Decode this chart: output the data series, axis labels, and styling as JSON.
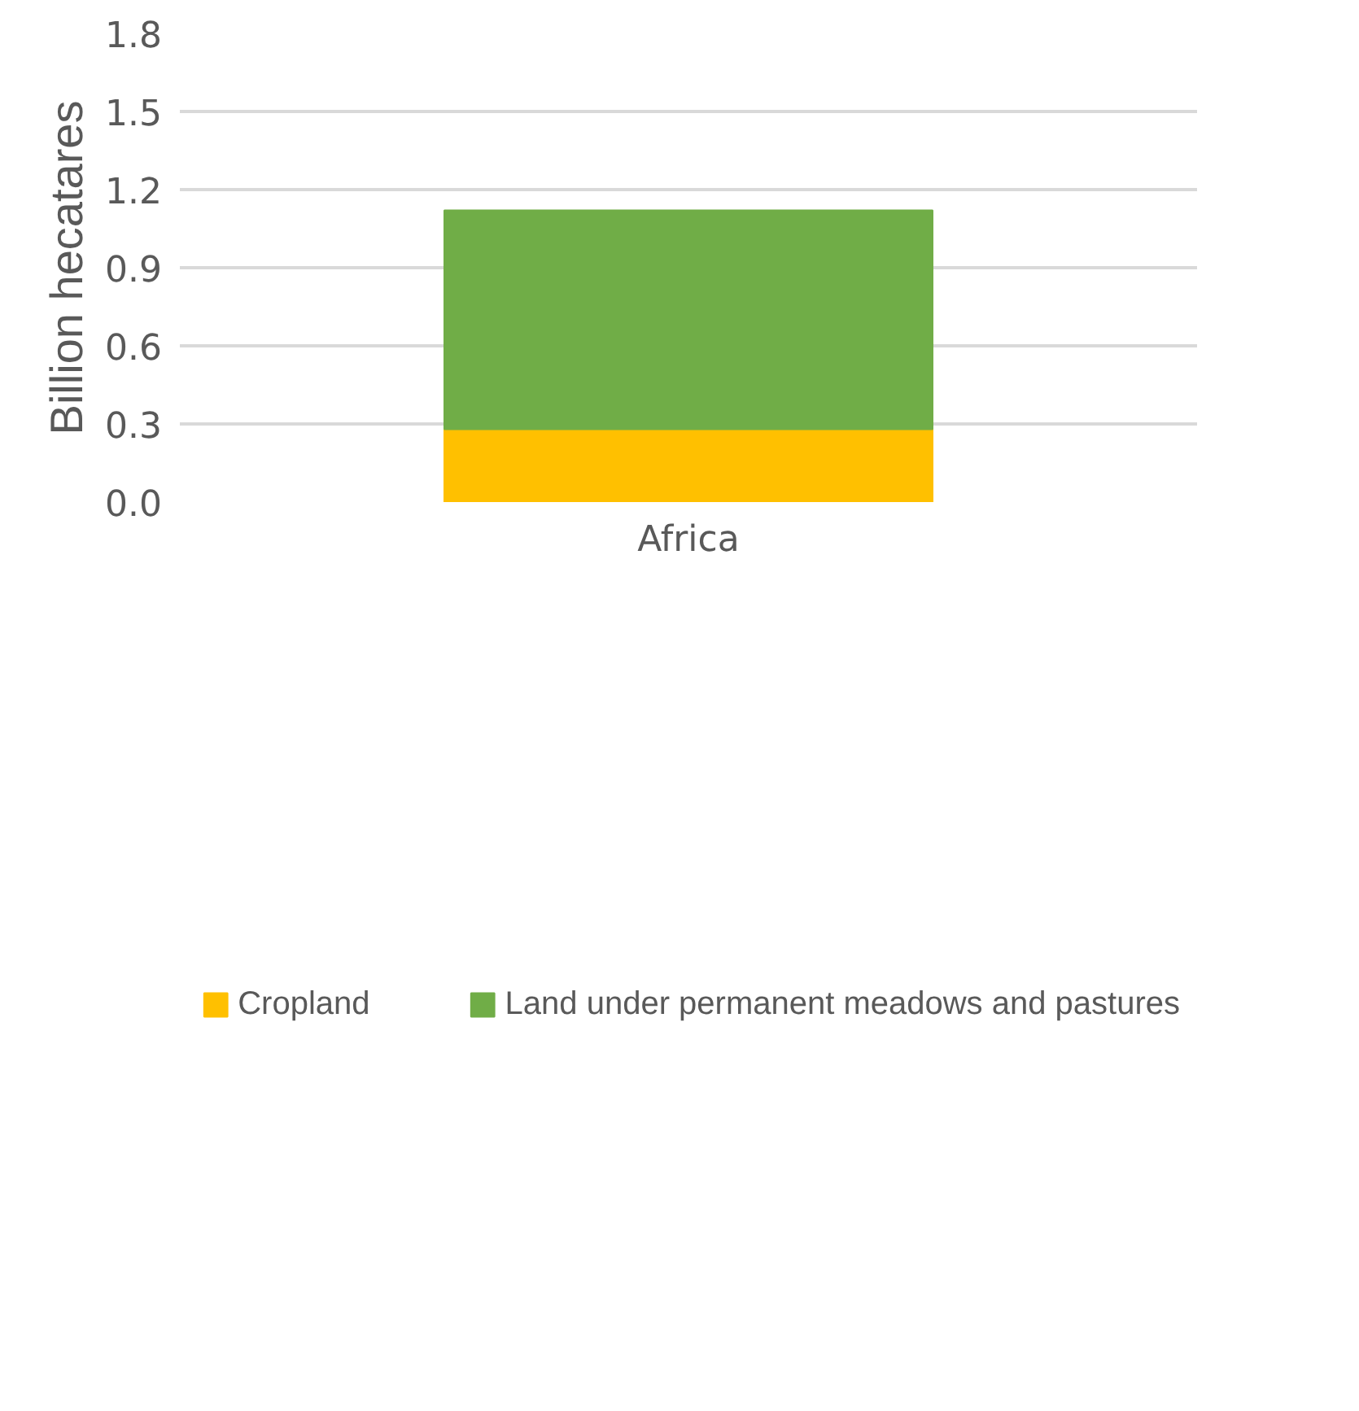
{
  "chart_data": {
    "type": "bar",
    "stacked": true,
    "ylabel": "Billion hecatares",
    "categories": [
      "Africa"
    ],
    "series": [
      {
        "name": "Cropland",
        "color": "#ffc000",
        "values": [
          0.28
        ]
      },
      {
        "name": "Land under permanent meadows and pastures",
        "color": "#70ad47",
        "values": [
          0.84
        ]
      }
    ],
    "ylim": [
      0,
      1.8
    ],
    "yticks": [
      {
        "value": 0,
        "label": "0.0"
      },
      0.3,
      0.6,
      0.9,
      1.2,
      1.5,
      1.8
    ],
    "grid": "y",
    "legend": "bottom"
  }
}
